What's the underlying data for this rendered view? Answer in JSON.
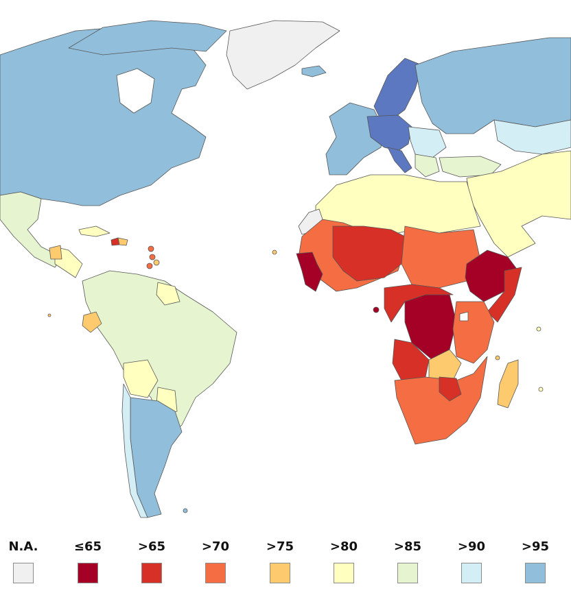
{
  "legend": [
    {
      "label": "N.A.",
      "color": "#f0f0f0"
    },
    {
      "label": "≤65",
      "color": "#a50026"
    },
    {
      "label": ">65",
      "color": "#d73027"
    },
    {
      "label": ">70",
      "color": "#f46d43"
    },
    {
      "label": ">75",
      "color": "#fdcb6e"
    },
    {
      "label": ">80",
      "color": "#ffffbf"
    },
    {
      "label": ">85",
      "color": "#e6f5d0"
    },
    {
      "label": ">90",
      "color": "#d4eef5"
    },
    {
      "label": ">95",
      "color": "#91bfdb"
    }
  ],
  "colors": {
    "highest": "#5b78c0",
    "ocean": "#ffffff",
    "border": "#555555"
  }
}
